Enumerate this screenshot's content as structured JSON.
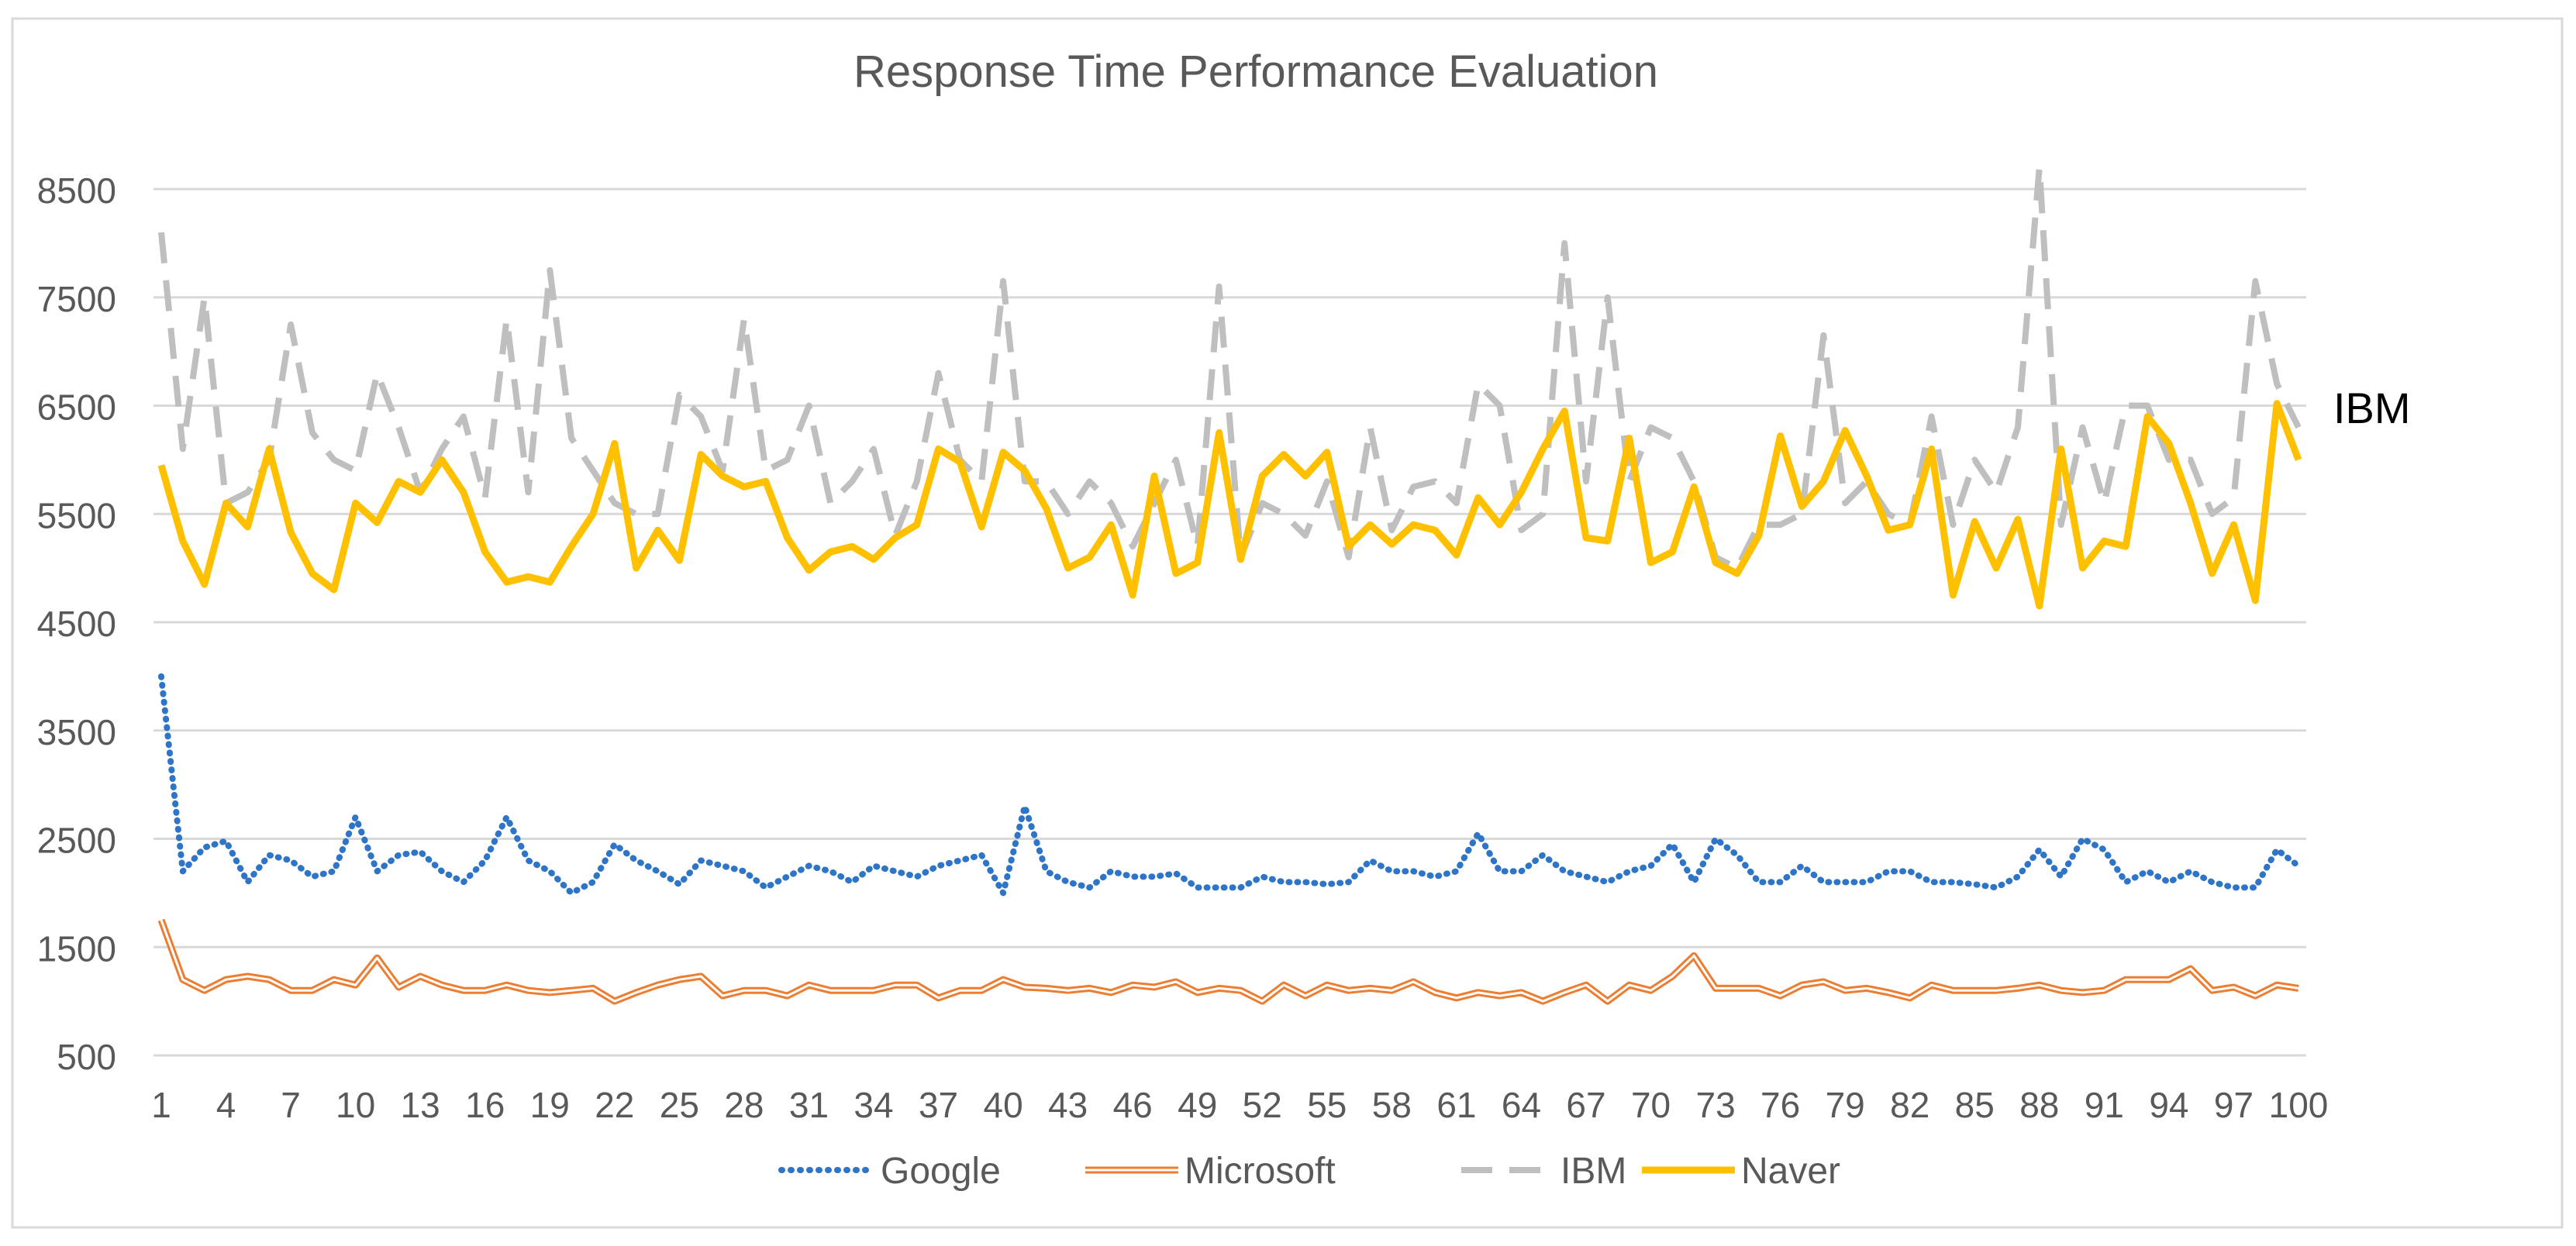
{
  "chart_data": {
    "type": "line",
    "title": "Response Time Performance Evaluation",
    "xlabel": "",
    "ylabel": "",
    "ylim": [
      500,
      8500
    ],
    "yticks": [
      500,
      1500,
      2500,
      3500,
      4500,
      5500,
      6500,
      7500,
      8500
    ],
    "x": [
      1,
      2,
      3,
      4,
      5,
      6,
      7,
      8,
      9,
      10,
      11,
      12,
      13,
      14,
      15,
      16,
      17,
      18,
      19,
      20,
      21,
      22,
      23,
      24,
      25,
      26,
      27,
      28,
      29,
      30,
      31,
      32,
      33,
      34,
      35,
      36,
      37,
      38,
      39,
      40,
      41,
      42,
      43,
      44,
      45,
      46,
      47,
      48,
      49,
      50,
      51,
      52,
      53,
      54,
      55,
      56,
      57,
      58,
      59,
      60,
      61,
      62,
      63,
      64,
      65,
      66,
      67,
      68,
      69,
      70,
      71,
      72,
      73,
      74,
      75,
      76,
      77,
      78,
      79,
      80,
      81,
      82,
      83,
      84,
      85,
      86,
      87,
      88,
      89,
      90,
      91,
      92,
      93,
      94,
      95,
      96,
      97,
      98,
      99,
      100
    ],
    "xtick_labels": [
      "1",
      "4",
      "7",
      "10",
      "13",
      "16",
      "19",
      "22",
      "25",
      "28",
      "31",
      "34",
      "37",
      "40",
      "43",
      "46",
      "49",
      "52",
      "55",
      "58",
      "61",
      "64",
      "67",
      "70",
      "73",
      "76",
      "79",
      "82",
      "85",
      "88",
      "91",
      "94",
      "97",
      "100"
    ],
    "legend_position": "bottom",
    "annotation": "IBM",
    "series": [
      {
        "name": "Google",
        "color": "#2e75c8",
        "style": "dotted",
        "values": [
          4000,
          2200,
          2420,
          2480,
          2100,
          2350,
          2300,
          2150,
          2200,
          2700,
          2200,
          2350,
          2380,
          2200,
          2100,
          2300,
          2700,
          2300,
          2200,
          2000,
          2100,
          2450,
          2300,
          2200,
          2080,
          2300,
          2250,
          2200,
          2050,
          2150,
          2250,
          2200,
          2100,
          2250,
          2200,
          2150,
          2250,
          2300,
          2350,
          2000,
          2800,
          2200,
          2100,
          2050,
          2200,
          2150,
          2150,
          2180,
          2050,
          2050,
          2050,
          2150,
          2100,
          2100,
          2080,
          2100,
          2300,
          2200,
          2200,
          2150,
          2200,
          2550,
          2200,
          2200,
          2350,
          2200,
          2150,
          2100,
          2200,
          2250,
          2450,
          2100,
          2500,
          2350,
          2100,
          2100,
          2250,
          2100,
          2100,
          2100,
          2200,
          2200,
          2100,
          2100,
          2080,
          2050,
          2150,
          2400,
          2150,
          2500,
          2400,
          2100,
          2200,
          2100,
          2200,
          2100,
          2050,
          2050,
          2400,
          2250
        ]
      },
      {
        "name": "Microsoft",
        "color": "#ed7d31",
        "style": "double",
        "values": [
          1750,
          1200,
          1100,
          1200,
          1230,
          1200,
          1100,
          1100,
          1200,
          1150,
          1400,
          1130,
          1230,
          1150,
          1100,
          1100,
          1150,
          1100,
          1080,
          1100,
          1120,
          1000,
          1080,
          1150,
          1200,
          1230,
          1050,
          1100,
          1100,
          1050,
          1150,
          1100,
          1100,
          1100,
          1150,
          1150,
          1030,
          1100,
          1100,
          1200,
          1130,
          1120,
          1100,
          1120,
          1080,
          1150,
          1130,
          1180,
          1080,
          1120,
          1100,
          1000,
          1150,
          1050,
          1150,
          1100,
          1120,
          1100,
          1180,
          1080,
          1030,
          1080,
          1050,
          1080,
          1000,
          1080,
          1150,
          1000,
          1150,
          1100,
          1230,
          1420,
          1120,
          1120,
          1120,
          1050,
          1150,
          1180,
          1100,
          1120,
          1080,
          1030,
          1150,
          1100,
          1100,
          1100,
          1120,
          1150,
          1100,
          1080,
          1100,
          1200,
          1200,
          1200,
          1300,
          1100,
          1130,
          1050,
          1150,
          1120
        ]
      },
      {
        "name": "IBM",
        "color": "#bfbfbf",
        "style": "dashed",
        "values": [
          8100,
          6100,
          7500,
          5600,
          5700,
          6000,
          7250,
          6250,
          6000,
          5900,
          6800,
          6300,
          5700,
          6100,
          6400,
          5650,
          7300,
          5700,
          7750,
          6200,
          5900,
          5600,
          5500,
          5500,
          6600,
          6400,
          5900,
          7300,
          5900,
          6000,
          6500,
          5600,
          5800,
          6100,
          5300,
          5800,
          6800,
          6000,
          5800,
          7650,
          5800,
          5800,
          5500,
          5800,
          5600,
          5200,
          5600,
          6000,
          5200,
          7600,
          5100,
          5600,
          5500,
          5300,
          5800,
          5100,
          6300,
          5350,
          5750,
          5800,
          5600,
          6700,
          6500,
          5350,
          5500,
          8000,
          5800,
          7500,
          5800,
          6300,
          6200,
          5800,
          5100,
          5000,
          5400,
          5400,
          5500,
          7150,
          5600,
          5800,
          5500,
          5400,
          6400,
          5400,
          6000,
          5700,
          6300,
          8700,
          5400,
          6300,
          5600,
          6500,
          6500,
          6000,
          6000,
          5500,
          5650,
          7650,
          6700,
          6300
        ]
      },
      {
        "name": "Naver",
        "color": "#ffc000",
        "style": "solid",
        "values": [
          5950,
          5250,
          4850,
          5600,
          5380,
          6100,
          5330,
          4950,
          4800,
          5600,
          5420,
          5800,
          5700,
          6000,
          5700,
          5150,
          4870,
          4920,
          4870,
          5200,
          5500,
          6150,
          5000,
          5350,
          5070,
          6050,
          5850,
          5750,
          5800,
          5280,
          4980,
          5150,
          5200,
          5080,
          5280,
          5400,
          6100,
          5980,
          5380,
          6070,
          5900,
          5550,
          5000,
          5100,
          5400,
          4750,
          5850,
          4950,
          5050,
          6250,
          5080,
          5850,
          6050,
          5850,
          6070,
          5200,
          5400,
          5220,
          5400,
          5350,
          5120,
          5650,
          5400,
          5700,
          6100,
          6450,
          5280,
          5250,
          6200,
          5050,
          5150,
          5750,
          5050,
          4950,
          5300,
          6220,
          5570,
          5800,
          6270,
          5850,
          5350,
          5400,
          6100,
          4750,
          5430,
          5000,
          5450,
          4650,
          6100,
          5000,
          5250,
          5200,
          6400,
          6150,
          5600,
          4950,
          5400,
          4700,
          6520,
          6000
        ]
      }
    ]
  }
}
